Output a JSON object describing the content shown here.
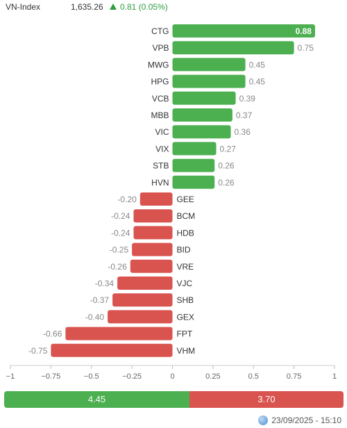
{
  "header": {
    "index_name": "VN-Index",
    "index_value": "1,635.26",
    "change_text": "0.81 (0.05%)"
  },
  "colors": {
    "positive": "#4caf50",
    "negative": "#d9534f",
    "header_up": "#2e9e3e"
  },
  "chart_data": {
    "type": "bar",
    "orientation": "horizontal",
    "categories": [
      "CTG",
      "VPB",
      "MWG",
      "HPG",
      "VCB",
      "MBB",
      "VIC",
      "VIX",
      "STB",
      "HVN",
      "GEE",
      "BCM",
      "HDB",
      "BID",
      "VRE",
      "VJC",
      "SHB",
      "GEX",
      "FPT",
      "VHM"
    ],
    "values": [
      0.88,
      0.75,
      0.45,
      0.45,
      0.39,
      0.37,
      0.36,
      0.27,
      0.26,
      0.26,
      -0.2,
      -0.24,
      -0.24,
      -0.25,
      -0.26,
      -0.34,
      -0.37,
      -0.4,
      -0.66,
      -0.75
    ],
    "value_labels": [
      "0.88",
      "0.75",
      "0.45",
      "0.45",
      "0.39",
      "0.37",
      "0.36",
      "0.27",
      "0.26",
      "0.26",
      "-0.20",
      "-0.24",
      "-0.24",
      "-0.25",
      "-0.26",
      "-0.34",
      "-0.37",
      "-0.40",
      "-0.66",
      "-0.75"
    ],
    "xlim": [
      -1,
      1
    ],
    "xticks": [
      -1,
      -0.75,
      -0.5,
      -0.25,
      0,
      0.25,
      0.5,
      0.75,
      1
    ],
    "xtick_labels": [
      "−1",
      "−0.75",
      "−0.5",
      "−0.25",
      "0",
      "0.25",
      "0.5",
      "0.75",
      "1"
    ],
    "grid": false
  },
  "summary": {
    "positive_total": 4.45,
    "negative_total": 3.7,
    "positive_label": "4.45",
    "negative_label": "3.70"
  },
  "footer": {
    "timestamp": "23/09/2025 - 15:10"
  }
}
